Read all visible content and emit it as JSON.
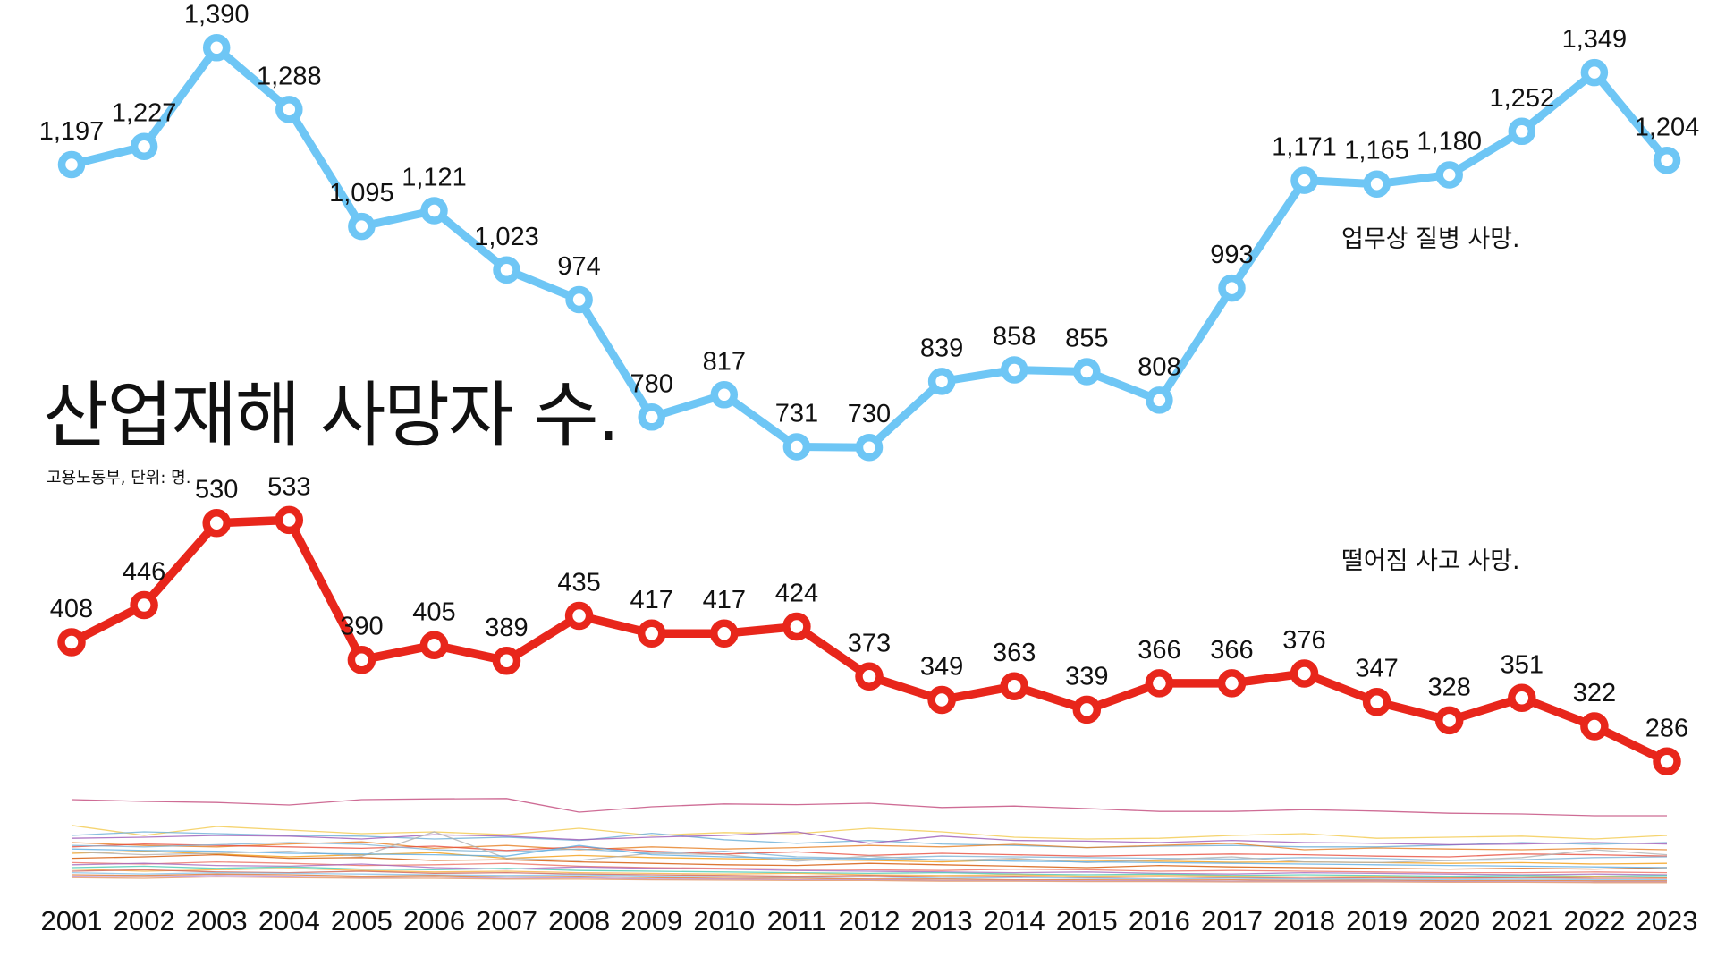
{
  "title": "산업재해 사망자 수.",
  "source": "고용노동부, 단위: 명.",
  "chart_data": {
    "type": "line",
    "x": [
      "2001",
      "2002",
      "2003",
      "2004",
      "2005",
      "2006",
      "2007",
      "2008",
      "2009",
      "2010",
      "2011",
      "2012",
      "2013",
      "2014",
      "2015",
      "2016",
      "2017",
      "2018",
      "2019",
      "2020",
      "2021",
      "2022",
      "2023"
    ],
    "series": [
      {
        "name": "업무상 질병 사망.",
        "color": "#6ec6f5",
        "values": [
          1197,
          1227,
          1390,
          1288,
          1095,
          1121,
          1023,
          974,
          780,
          817,
          731,
          730,
          839,
          858,
          855,
          808,
          993,
          1171,
          1165,
          1180,
          1252,
          1349,
          1204
        ],
        "labels": [
          "1,197",
          "1,227",
          "1,390",
          "1,288",
          "1,095",
          "1,121",
          "1,023",
          "974",
          "780",
          "817",
          "731",
          "730",
          "839",
          "858",
          "855",
          "808",
          "993",
          "1,171",
          "1,165",
          "1,180",
          "1,252",
          "1,349",
          "1,204"
        ]
      },
      {
        "name": "떨어짐 사고 사망.",
        "color": "#e8261b",
        "values": [
          408,
          446,
          530,
          533,
          390,
          405,
          389,
          435,
          417,
          417,
          424,
          373,
          349,
          363,
          339,
          366,
          366,
          376,
          347,
          328,
          351,
          322,
          286
        ],
        "labels": [
          "408",
          "446",
          "530",
          "533",
          "390",
          "405",
          "389",
          "435",
          "417",
          "417",
          "424",
          "373",
          "349",
          "363",
          "339",
          "366",
          "366",
          "376",
          "347",
          "328",
          "351",
          "322",
          "286"
        ]
      }
    ],
    "background_series": {
      "colors": [
        "#c2477a",
        "#f2c94c",
        "#6aaed6",
        "#9b59b6",
        "#e67e22",
        "#e74c3c",
        "#7fb3d5",
        "#f39c12",
        "#b0b0b0",
        "#d35400",
        "#5dade2",
        "#ec7063",
        "#a569bd",
        "#48c9b0",
        "#f5b041",
        "#cd6155",
        "#85c1e9",
        "#dc7633",
        "#bb8fce",
        "#e59866"
      ],
      "values": [
        [
          390,
          385,
          382,
          375,
          390,
          392,
          393,
          355,
          370,
          378,
          376,
          380,
          368,
          372,
          365,
          357,
          357,
          362,
          358,
          352,
          350,
          345,
          345
        ],
        [
          318,
          290,
          315,
          305,
          295,
          300,
          292,
          310,
          290,
          298,
          295,
          310,
          300,
          285,
          280,
          282,
          290,
          295,
          282,
          285,
          288,
          280,
          290
        ],
        [
          290,
          300,
          295,
          290,
          288,
          280,
          285,
          276,
          296,
          278,
          268,
          276,
          266,
          262,
          256,
          260,
          262,
          258,
          258,
          263,
          270,
          265,
          270
        ],
        [
          282,
          285,
          290,
          288,
          280,
          292,
          288,
          278,
          285,
          290,
          300,
          268,
          288,
          276,
          274,
          270,
          276,
          270,
          268,
          264,
          266,
          270,
          266
        ],
        [
          270,
          262,
          258,
          266,
          272,
          254,
          262,
          250,
          258,
          252,
          256,
          262,
          258,
          265,
          256,
          262,
          268,
          250,
          255,
          252,
          250,
          254,
          250
        ],
        [
          258,
          266,
          262,
          258,
          254,
          260,
          248,
          258,
          246,
          238,
          244,
          234,
          240,
          236,
          232,
          235,
          238,
          236,
          232,
          230,
          238,
          236,
          232
        ],
        [
          262,
          258,
          264,
          270,
          265,
          250,
          244,
          252,
          240,
          246,
          230,
          226,
          232,
          230,
          228,
          226,
          224,
          228,
          226,
          220,
          222,
          228,
          230
        ],
        [
          240,
          246,
          238,
          230,
          236,
          242,
          226,
          234,
          228,
          225,
          222,
          220,
          216,
          222,
          220,
          218,
          215,
          216,
          214,
          212,
          214,
          210,
          212
        ],
        [
          244,
          236,
          240,
          246,
          232,
          300,
          226,
          220,
          240,
          236,
          218,
          232,
          220,
          226,
          214,
          222,
          230,
          216,
          214,
          220,
          228,
          250,
          236
        ],
        [
          226,
          230,
          236,
          226,
          228,
          220,
          222,
          216,
          212,
          208,
          206,
          212,
          208,
          204,
          200,
          206,
          202,
          200,
          198,
          196,
          198,
          196,
          200
        ],
        [
          252,
          248,
          246,
          240,
          238,
          236,
          232,
          262,
          236,
          230,
          226,
          224,
          222,
          218,
          216,
          214,
          212,
          210,
          208,
          206,
          204,
          202,
          200
        ],
        [
          214,
          210,
          216,
          212,
          206,
          208,
          212,
          204,
          200,
          198,
          196,
          194,
          192,
          196,
          194,
          190,
          192,
          190,
          188,
          186,
          186,
          188,
          186
        ],
        [
          208,
          212,
          206,
          204,
          210,
          200,
          196,
          202,
          198,
          196,
          192,
          190,
          188,
          186,
          188,
          184,
          182,
          186,
          184,
          182,
          180,
          182,
          180
        ],
        [
          200,
          204,
          198,
          202,
          196,
          194,
          198,
          192,
          190,
          188,
          186,
          184,
          186,
          182,
          180,
          182,
          178,
          180,
          178,
          176,
          178,
          176,
          178
        ],
        [
          196,
          190,
          194,
          198,
          192,
          188,
          190,
          186,
          184,
          182,
          184,
          180,
          178,
          180,
          176,
          178,
          176,
          174,
          176,
          172,
          174,
          176,
          172
        ],
        [
          190,
          194,
          188,
          186,
          190,
          184,
          186,
          182,
          180,
          178,
          176,
          178,
          174,
          176,
          172,
          174,
          172,
          170,
          172,
          170,
          172,
          170,
          170
        ],
        [
          186,
          182,
          186,
          184,
          182,
          180,
          178,
          180,
          176,
          174,
          172,
          174,
          170,
          172,
          170,
          168,
          170,
          168,
          168,
          166,
          168,
          166,
          166
        ],
        [
          180,
          178,
          182,
          180,
          176,
          178,
          174,
          176,
          172,
          170,
          170,
          168,
          168,
          166,
          166,
          165,
          166,
          164,
          165,
          163,
          164,
          163,
          163
        ],
        [
          176,
          174,
          178,
          176,
          172,
          174,
          170,
          172,
          168,
          168,
          166,
          166,
          164,
          164,
          163,
          163,
          162,
          162,
          162,
          161,
          161,
          160,
          160
        ],
        [
          172,
          170,
          174,
          172,
          170,
          170,
          168,
          168,
          166,
          165,
          164,
          164,
          162,
          162,
          161,
          161,
          160,
          160,
          160,
          159,
          159,
          158,
          158
        ]
      ]
    }
  }
}
